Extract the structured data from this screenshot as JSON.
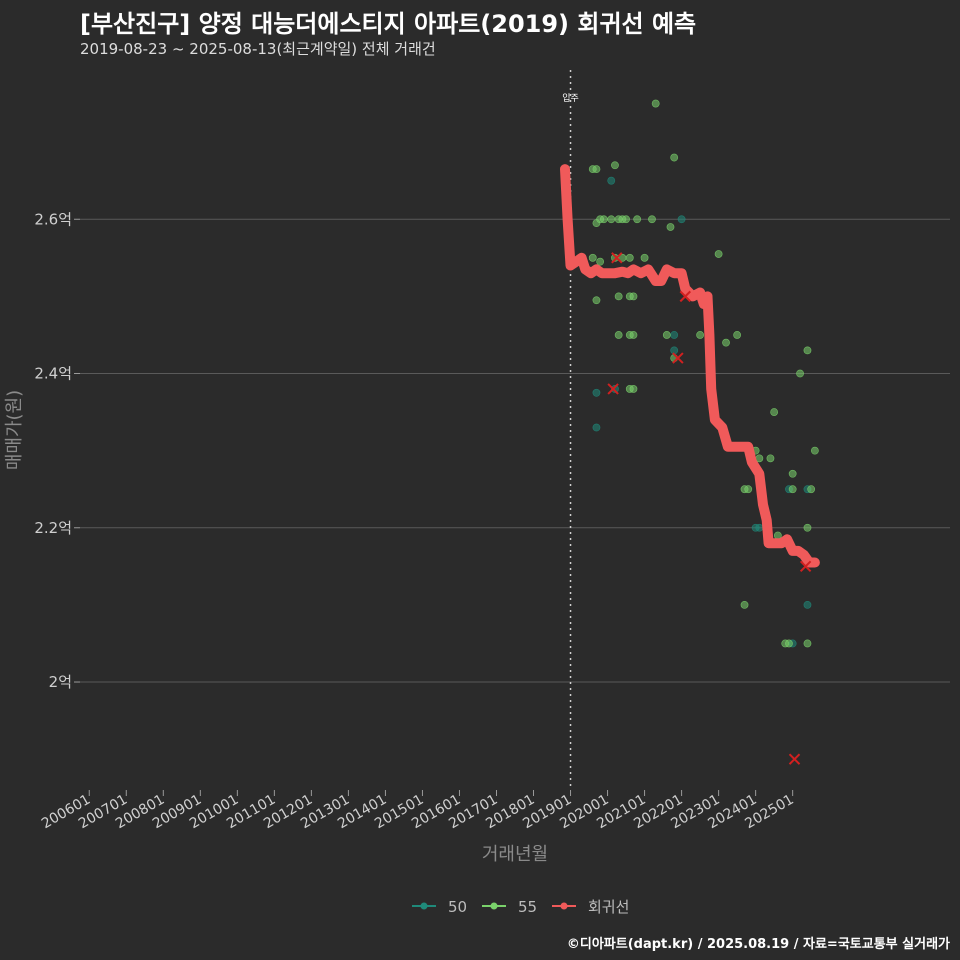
{
  "title": "[부산진구] 양정 대능더에스티지 아파트(2019) 회귀선 예측",
  "subtitle": "2019-08-23 ~ 2025-08-13(최근계약일) 전체 거래건",
  "caption": "©디아파트(dapt.kr) / 2025.08.19 / 자료=국토교통부 실거래가",
  "colors": {
    "background": "#2b2b2b",
    "grid": "#5a5a5a",
    "s50": "#1f8a7a",
    "s55": "#7ad26b",
    "regression": "#f05a5a",
    "cancel": "#d22020"
  },
  "chart_data": {
    "type": "scatter",
    "xlabel": "거래년월",
    "ylabel": "매매가(원)",
    "xlim": [
      2005.75,
      2029.25
    ],
    "ylim": [
      1.86,
      2.8
    ],
    "x_ticks": [
      2006,
      2007,
      2008,
      2009,
      2010,
      2011,
      2012,
      2013,
      2014,
      2015,
      2016,
      2017,
      2018,
      2019,
      2020,
      2021,
      2022,
      2023,
      2024,
      2025
    ],
    "x_tick_labels": [
      "200601",
      "200701",
      "200801",
      "200901",
      "201001",
      "201101",
      "201201",
      "201301",
      "201401",
      "201501",
      "201601",
      "201701",
      "201801",
      "201901",
      "202001",
      "202101",
      "202201",
      "202301",
      "202401",
      "202501"
    ],
    "y_ticks": [
      2.0,
      2.2,
      2.4,
      2.6
    ],
    "y_tick_labels": [
      "2억",
      "2.2억",
      "2.4억",
      "2.6억"
    ],
    "vline": {
      "x": 2019.0,
      "label": "입주"
    },
    "legend": {
      "position": "bottom",
      "entries": [
        "50",
        "55",
        "회귀선"
      ]
    },
    "series": [
      {
        "name": "50",
        "points": [
          [
            2019.7,
            2.375
          ],
          [
            2019.7,
            2.33
          ],
          [
            2020.1,
            2.65
          ],
          [
            2020.2,
            2.38
          ],
          [
            2021.8,
            2.43
          ],
          [
            2021.8,
            2.45
          ],
          [
            2022.0,
            2.6
          ],
          [
            2024.0,
            2.2
          ],
          [
            2024.1,
            2.2
          ],
          [
            2024.9,
            2.25
          ],
          [
            2025.0,
            2.05
          ],
          [
            2025.4,
            2.1
          ],
          [
            2025.4,
            2.25
          ]
        ]
      },
      {
        "name": "55",
        "points": [
          [
            2019.6,
            2.665
          ],
          [
            2019.7,
            2.665
          ],
          [
            2019.7,
            2.595
          ],
          [
            2019.8,
            2.6
          ],
          [
            2019.9,
            2.6
          ],
          [
            2019.7,
            2.495
          ],
          [
            2019.6,
            2.55
          ],
          [
            2019.8,
            2.545
          ],
          [
            2020.1,
            2.6
          ],
          [
            2020.2,
            2.67
          ],
          [
            2020.3,
            2.6
          ],
          [
            2020.4,
            2.6
          ],
          [
            2020.5,
            2.6
          ],
          [
            2020.2,
            2.55
          ],
          [
            2020.4,
            2.55
          ],
          [
            2020.6,
            2.55
          ],
          [
            2020.3,
            2.5
          ],
          [
            2020.6,
            2.5
          ],
          [
            2020.7,
            2.5
          ],
          [
            2020.3,
            2.45
          ],
          [
            2020.6,
            2.45
          ],
          [
            2020.7,
            2.45
          ],
          [
            2020.6,
            2.38
          ],
          [
            2020.7,
            2.38
          ],
          [
            2020.8,
            2.6
          ],
          [
            2021.0,
            2.55
          ],
          [
            2021.2,
            2.6
          ],
          [
            2021.3,
            2.75
          ],
          [
            2021.6,
            2.45
          ],
          [
            2021.7,
            2.59
          ],
          [
            2021.8,
            2.68
          ],
          [
            2021.8,
            2.42
          ],
          [
            2022.5,
            2.45
          ],
          [
            2023.0,
            2.555
          ],
          [
            2023.2,
            2.44
          ],
          [
            2023.5,
            2.45
          ],
          [
            2023.7,
            2.25
          ],
          [
            2023.8,
            2.25
          ],
          [
            2024.0,
            2.3
          ],
          [
            2024.1,
            2.29
          ],
          [
            2024.4,
            2.29
          ],
          [
            2024.5,
            2.35
          ],
          [
            2024.6,
            2.19
          ],
          [
            2024.8,
            2.05
          ],
          [
            2024.9,
            2.05
          ],
          [
            2025.0,
            2.27
          ],
          [
            2025.0,
            2.25
          ],
          [
            2025.2,
            2.4
          ],
          [
            2025.4,
            2.43
          ],
          [
            2025.4,
            2.2
          ],
          [
            2025.4,
            2.05
          ],
          [
            2025.5,
            2.25
          ],
          [
            2025.6,
            2.3
          ],
          [
            2023.7,
            2.1
          ]
        ]
      },
      {
        "name": "회귀선",
        "points": [
          [
            2018.85,
            2.665
          ],
          [
            2018.92,
            2.6
          ],
          [
            2019.0,
            2.54
          ],
          [
            2019.15,
            2.545
          ],
          [
            2019.3,
            2.55
          ],
          [
            2019.4,
            2.535
          ],
          [
            2019.55,
            2.53
          ],
          [
            2019.7,
            2.535
          ],
          [
            2019.85,
            2.53
          ],
          [
            2020.0,
            2.53
          ],
          [
            2020.2,
            2.53
          ],
          [
            2020.4,
            2.532
          ],
          [
            2020.55,
            2.53
          ],
          [
            2020.7,
            2.535
          ],
          [
            2020.9,
            2.53
          ],
          [
            2021.1,
            2.535
          ],
          [
            2021.3,
            2.52
          ],
          [
            2021.45,
            2.52
          ],
          [
            2021.6,
            2.535
          ],
          [
            2021.8,
            2.53
          ],
          [
            2022.0,
            2.53
          ],
          [
            2022.1,
            2.51
          ],
          [
            2022.3,
            2.5
          ],
          [
            2022.5,
            2.505
          ],
          [
            2022.6,
            2.49
          ],
          [
            2022.7,
            2.5
          ],
          [
            2022.75,
            2.45
          ],
          [
            2022.8,
            2.38
          ],
          [
            2022.9,
            2.34
          ],
          [
            2023.1,
            2.33
          ],
          [
            2023.25,
            2.305
          ],
          [
            2023.5,
            2.305
          ],
          [
            2023.8,
            2.305
          ],
          [
            2023.9,
            2.285
          ],
          [
            2024.1,
            2.27
          ],
          [
            2024.2,
            2.23
          ],
          [
            2024.3,
            2.21
          ],
          [
            2024.35,
            2.18
          ],
          [
            2024.55,
            2.18
          ],
          [
            2024.7,
            2.18
          ],
          [
            2024.85,
            2.185
          ],
          [
            2025.0,
            2.17
          ],
          [
            2025.15,
            2.17
          ],
          [
            2025.3,
            2.165
          ],
          [
            2025.45,
            2.155
          ],
          [
            2025.6,
            2.155
          ]
        ]
      }
    ],
    "cancelled": [
      [
        2020.25,
        2.55
      ],
      [
        2020.15,
        2.38
      ],
      [
        2021.9,
        2.42
      ],
      [
        2022.1,
        2.5
      ],
      [
        2025.05,
        1.9
      ],
      [
        2025.35,
        2.15
      ]
    ]
  }
}
